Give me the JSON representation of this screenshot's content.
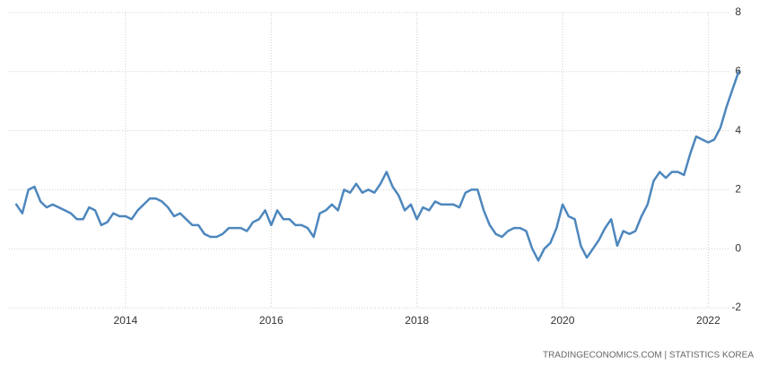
{
  "chart_data": {
    "type": "line",
    "source": "TRADINGECONOMICS.COM  |  STATISTICS KOREA",
    "x": [
      2012.5,
      2012.583,
      2012.667,
      2012.75,
      2012.833,
      2012.917,
      2013,
      2013.083,
      2013.167,
      2013.25,
      2013.333,
      2013.417,
      2013.5,
      2013.583,
      2013.667,
      2013.75,
      2013.833,
      2013.917,
      2014,
      2014.083,
      2014.167,
      2014.25,
      2014.333,
      2014.417,
      2014.5,
      2014.583,
      2014.667,
      2014.75,
      2014.833,
      2014.917,
      2015,
      2015.083,
      2015.167,
      2015.25,
      2015.333,
      2015.417,
      2015.5,
      2015.583,
      2015.667,
      2015.75,
      2015.833,
      2015.917,
      2016,
      2016.083,
      2016.167,
      2016.25,
      2016.333,
      2016.417,
      2016.5,
      2016.583,
      2016.667,
      2016.75,
      2016.833,
      2016.917,
      2017,
      2017.083,
      2017.167,
      2017.25,
      2017.333,
      2017.417,
      2017.5,
      2017.583,
      2017.667,
      2017.75,
      2017.833,
      2017.917,
      2018,
      2018.083,
      2018.167,
      2018.25,
      2018.333,
      2018.417,
      2018.5,
      2018.583,
      2018.667,
      2018.75,
      2018.833,
      2018.917,
      2019,
      2019.083,
      2019.167,
      2019.25,
      2019.333,
      2019.417,
      2019.5,
      2019.583,
      2019.667,
      2019.75,
      2019.833,
      2019.917,
      2020,
      2020.083,
      2020.167,
      2020.25,
      2020.333,
      2020.417,
      2020.5,
      2020.583,
      2020.667,
      2020.75,
      2020.833,
      2020.917,
      2021,
      2021.083,
      2021.167,
      2021.25,
      2021.333,
      2021.417,
      2021.5,
      2021.583,
      2021.667,
      2021.75,
      2021.833,
      2021.917,
      2022,
      2022.083,
      2022.167,
      2022.25,
      2022.333,
      2022.417
    ],
    "series": [
      {
        "color": "#4d87bd",
        "values": [
          1.5,
          1.2,
          2.0,
          2.1,
          1.6,
          1.4,
          1.5,
          1.4,
          1.3,
          1.2,
          1.0,
          1.0,
          1.4,
          1.3,
          0.8,
          0.9,
          1.2,
          1.1,
          1.1,
          1.0,
          1.3,
          1.5,
          1.7,
          1.7,
          1.6,
          1.4,
          1.1,
          1.2,
          1.0,
          0.8,
          0.8,
          0.5,
          0.4,
          0.4,
          0.5,
          0.7,
          0.7,
          0.7,
          0.6,
          0.9,
          1.0,
          1.3,
          0.8,
          1.3,
          1.0,
          1.0,
          0.8,
          0.8,
          0.7,
          0.4,
          1.2,
          1.3,
          1.5,
          1.3,
          2.0,
          1.9,
          2.2,
          1.9,
          2.0,
          1.9,
          2.2,
          2.6,
          2.1,
          1.8,
          1.3,
          1.5,
          1.0,
          1.4,
          1.3,
          1.6,
          1.5,
          1.5,
          1.5,
          1.4,
          1.9,
          2.0,
          2.0,
          1.3,
          0.8,
          0.5,
          0.4,
          0.6,
          0.7,
          0.7,
          0.6,
          0.0,
          -0.4,
          0.0,
          0.2,
          0.7,
          1.5,
          1.1,
          1.0,
          0.1,
          -0.3,
          0.0,
          0.3,
          0.7,
          1.0,
          0.1,
          0.6,
          0.5,
          0.6,
          1.1,
          1.5,
          2.3,
          2.6,
          2.4,
          2.6,
          2.6,
          2.5,
          3.2,
          3.8,
          3.7,
          3.6,
          3.7,
          4.1,
          4.8,
          5.4,
          6.0
        ]
      }
    ],
    "xlim": [
      2012.4,
      2022.5
    ],
    "xticks": [
      2014,
      2016,
      2018,
      2020,
      2022
    ],
    "ylim": [
      -2,
      8
    ],
    "yticks": [
      -2,
      0,
      2,
      4,
      6,
      8
    ],
    "grid": true
  }
}
